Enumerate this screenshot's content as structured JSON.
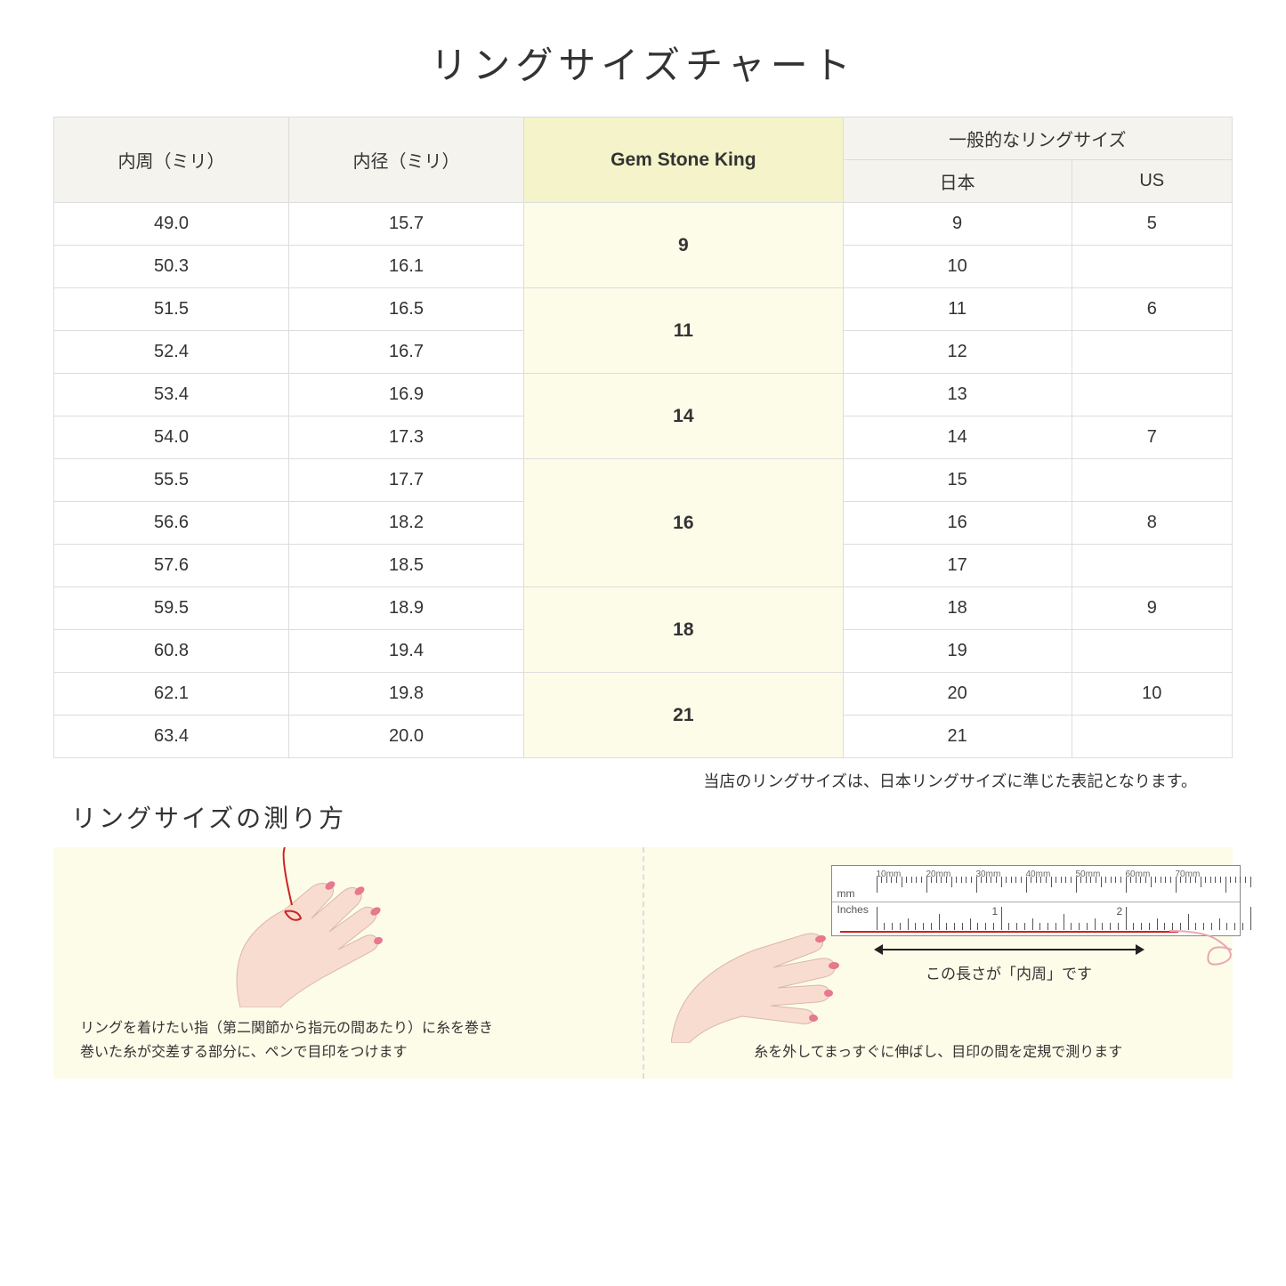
{
  "title": "リングサイズチャート",
  "headers": {
    "col1": "内周（ミリ）",
    "col2": "内径（ミリ）",
    "col3": "Gem Stone King",
    "group": "一般的なリングサイズ",
    "sub1": "日本",
    "sub2": "US"
  },
  "rows": [
    {
      "c": "49.0",
      "d": "15.7",
      "jp": "9",
      "us": "5"
    },
    {
      "c": "50.3",
      "d": "16.1",
      "jp": "10",
      "us": ""
    },
    {
      "c": "51.5",
      "d": "16.5",
      "jp": "11",
      "us": "6"
    },
    {
      "c": "52.4",
      "d": "16.7",
      "jp": "12",
      "us": ""
    },
    {
      "c": "53.4",
      "d": "16.9",
      "jp": "13",
      "us": ""
    },
    {
      "c": "54.0",
      "d": "17.3",
      "jp": "14",
      "us": "7"
    },
    {
      "c": "55.5",
      "d": "17.7",
      "jp": "15",
      "us": ""
    },
    {
      "c": "56.6",
      "d": "18.2",
      "jp": "16",
      "us": "8"
    },
    {
      "c": "57.6",
      "d": "18.5",
      "jp": "17",
      "us": ""
    },
    {
      "c": "59.5",
      "d": "18.9",
      "jp": "18",
      "us": "9"
    },
    {
      "c": "60.8",
      "d": "19.4",
      "jp": "19",
      "us": ""
    },
    {
      "c": "62.1",
      "d": "19.8",
      "jp": "20",
      "us": "10"
    },
    {
      "c": "63.4",
      "d": "20.0",
      "jp": "21",
      "us": ""
    }
  ],
  "gsk_groups": [
    {
      "label": "9",
      "span": 2
    },
    {
      "label": "11",
      "span": 2
    },
    {
      "label": "14",
      "span": 2
    },
    {
      "label": "16",
      "span": 3
    },
    {
      "label": "18",
      "span": 2
    },
    {
      "label": "21",
      "span": 2
    }
  ],
  "note": "当店のリングサイズは、日本リングサイズに準じた表記となります。",
  "subtitle": "リングサイズの測り方",
  "step1": "リングを着けたい指（第二関節から指元の間あたり）に糸を巻き\n巻いた糸が交差する部分に、ペンで目印をつけます",
  "step2": "糸を外してまっすぐに伸ばし、目印の間を定規で測ります",
  "arrow_label": "この長さが「内周」です",
  "ruler": {
    "mm_unit": "mm",
    "in_unit": "Inches",
    "mm_labels": [
      "10mm",
      "20mm",
      "30mm",
      "40mm",
      "50mm",
      "60mm",
      "70mm"
    ],
    "in_labels": [
      "1",
      "2"
    ]
  },
  "colors": {
    "header_bg": "#f5f3ed",
    "gsk_header_bg": "#f4f3c9",
    "gsk_cell_bg": "#fdfce9",
    "border": "#dddddd",
    "panel_bg": "#fdfce9",
    "thread": "#c22",
    "skin": "#f8dccf",
    "nail": "#e6788f"
  }
}
